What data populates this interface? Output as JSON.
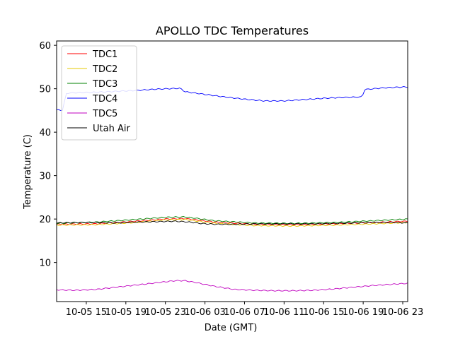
{
  "chart_data": {
    "type": "line",
    "title": "APOLLO TDC Temperatures",
    "xlabel": "Date (GMT)",
    "ylabel": "Temperature (C)",
    "xlim": [
      12.0,
      47.5
    ],
    "ylim": [
      1.0,
      61.0
    ],
    "x_unit": "hours since 2019-10-05 00:00 GMT",
    "x_ticks": [
      {
        "x": 15,
        "label": "10-05 15"
      },
      {
        "x": 19,
        "label": "10-05 19"
      },
      {
        "x": 23,
        "label": "10-05 23"
      },
      {
        "x": 27,
        "label": "10-06 03"
      },
      {
        "x": 31,
        "label": "10-06 07"
      },
      {
        "x": 35,
        "label": "10-06 11"
      },
      {
        "x": 39,
        "label": "10-06 15"
      },
      {
        "x": 43,
        "label": "10-06 19"
      },
      {
        "x": 47,
        "label": "10-06 23"
      }
    ],
    "y_ticks": [
      10,
      20,
      30,
      40,
      50,
      60
    ],
    "grid": false,
    "legend": "top-left",
    "series": [
      {
        "name": "TDC1",
        "color": "#ff0000",
        "x": [
          12.0,
          16.0,
          20.0,
          23.0,
          25.0,
          28.0,
          32.0,
          36.0,
          40.0,
          44.0,
          47.5
        ],
        "y": [
          18.8,
          18.9,
          19.5,
          20.0,
          20.1,
          19.3,
          18.8,
          18.7,
          18.9,
          19.2,
          19.5
        ]
      },
      {
        "name": "TDC2",
        "color": "#e6c800",
        "x": [
          12.0,
          16.0,
          20.0,
          23.0,
          25.0,
          28.0,
          32.0,
          36.0,
          40.0,
          44.0,
          47.5
        ],
        "y": [
          18.6,
          18.7,
          19.2,
          19.8,
          19.9,
          19.0,
          18.5,
          18.4,
          18.6,
          18.9,
          19.2
        ]
      },
      {
        "name": "TDC3",
        "color": "#008000",
        "x": [
          12.0,
          16.0,
          20.0,
          23.0,
          25.0,
          28.0,
          32.0,
          36.0,
          40.0,
          44.0,
          47.5
        ],
        "y": [
          19.0,
          19.3,
          19.9,
          20.4,
          20.5,
          19.6,
          19.1,
          19.0,
          19.2,
          19.6,
          20.0
        ]
      },
      {
        "name": "TDC4",
        "color": "#0000ff",
        "x": [
          12.0,
          12.6,
          13.0,
          14.0,
          16.0,
          18.0,
          20.0,
          22.0,
          24.5,
          25.0,
          27.0,
          29.0,
          31.0,
          33.0,
          35.0,
          37.0,
          39.0,
          41.0,
          42.9,
          43.1,
          45.0,
          47.0,
          47.5
        ],
        "y": [
          45.1,
          45.1,
          49.0,
          49.1,
          49.2,
          49.4,
          49.6,
          49.9,
          50.1,
          49.3,
          48.7,
          48.1,
          47.6,
          47.2,
          47.2,
          47.5,
          47.8,
          48.0,
          48.1,
          49.8,
          50.2,
          50.4,
          50.4
        ]
      },
      {
        "name": "TDC5",
        "color": "#bf00bf",
        "x": [
          12.0,
          14.0,
          16.0,
          18.0,
          20.0,
          22.0,
          24.0,
          25.0,
          26.0,
          28.0,
          30.0,
          32.0,
          34.0,
          36.0,
          38.0,
          40.0,
          42.0,
          44.0,
          46.0,
          47.5
        ],
        "y": [
          3.7,
          3.6,
          3.8,
          4.3,
          4.8,
          5.3,
          5.8,
          5.8,
          5.4,
          4.5,
          3.8,
          3.6,
          3.5,
          3.5,
          3.6,
          3.9,
          4.3,
          4.7,
          5.0,
          5.2
        ]
      },
      {
        "name": "Utah Air",
        "color": "#000000",
        "x": [
          12.0,
          14.0,
          16.0,
          18.0,
          20.0,
          22.0,
          24.0,
          25.5,
          26.5,
          28.0,
          30.0,
          32.0,
          34.0,
          36.0,
          38.0,
          40.0,
          42.0,
          44.0,
          46.0,
          47.5
        ],
        "y": [
          19.1,
          19.2,
          19.2,
          19.1,
          19.3,
          19.4,
          19.5,
          19.3,
          19.0,
          18.8,
          18.8,
          18.9,
          18.9,
          18.9,
          18.9,
          19.0,
          19.1,
          19.2,
          19.2,
          19.1
        ]
      }
    ]
  }
}
